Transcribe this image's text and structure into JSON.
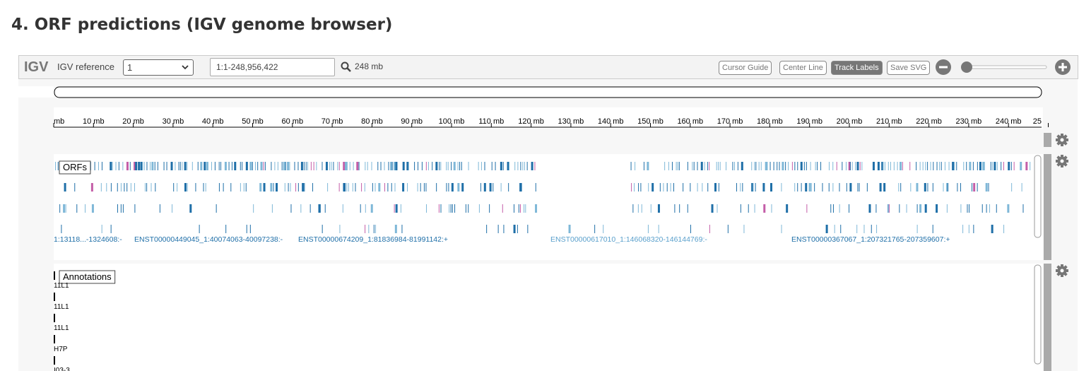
{
  "header": {
    "title": "4. ORF predictions (IGV genome browser)"
  },
  "navbar": {
    "logo": "IGV",
    "reference_label": "IGV reference",
    "reference_value": "1",
    "locus": "1:1-248,956,422",
    "width": "248 mb",
    "buttons": [
      "Cursor Guide",
      "Center Line",
      "Track Labels",
      "Save SVG"
    ]
  },
  "ruler": {
    "labels": [
      "mb",
      "10 mb",
      "20 mb",
      "30 mb",
      "40 mb",
      "50 mb",
      "60 mb",
      "70 mb",
      "80 mb",
      "90 mb",
      "100 mb",
      "110 mb",
      "120 mb",
      "130 mb",
      "140 mb",
      "150 mb",
      "160 mb",
      "170 mb",
      "180 mb",
      "190 mb",
      "200 mb",
      "210 mb",
      "220 mb",
      "230 mb",
      "240 mb",
      "25"
    ]
  },
  "tracks": [
    {
      "name": "ORFs",
      "feature_labels": [
        "1:13118...-1324608:-",
        "ENST00000449045_1:40074063-40097238:-",
        "ENST00000674209_1:81836984-81991142:+",
        "ENST00000617010_1:146068320-146144769:-",
        "ENST00000367067_1:207321765-207359607:+"
      ]
    },
    {
      "name": "Annotations",
      "feature_labels": [
        "11L1",
        "11L1",
        "11L1",
        "H7P",
        "I03-3"
      ]
    }
  ]
}
